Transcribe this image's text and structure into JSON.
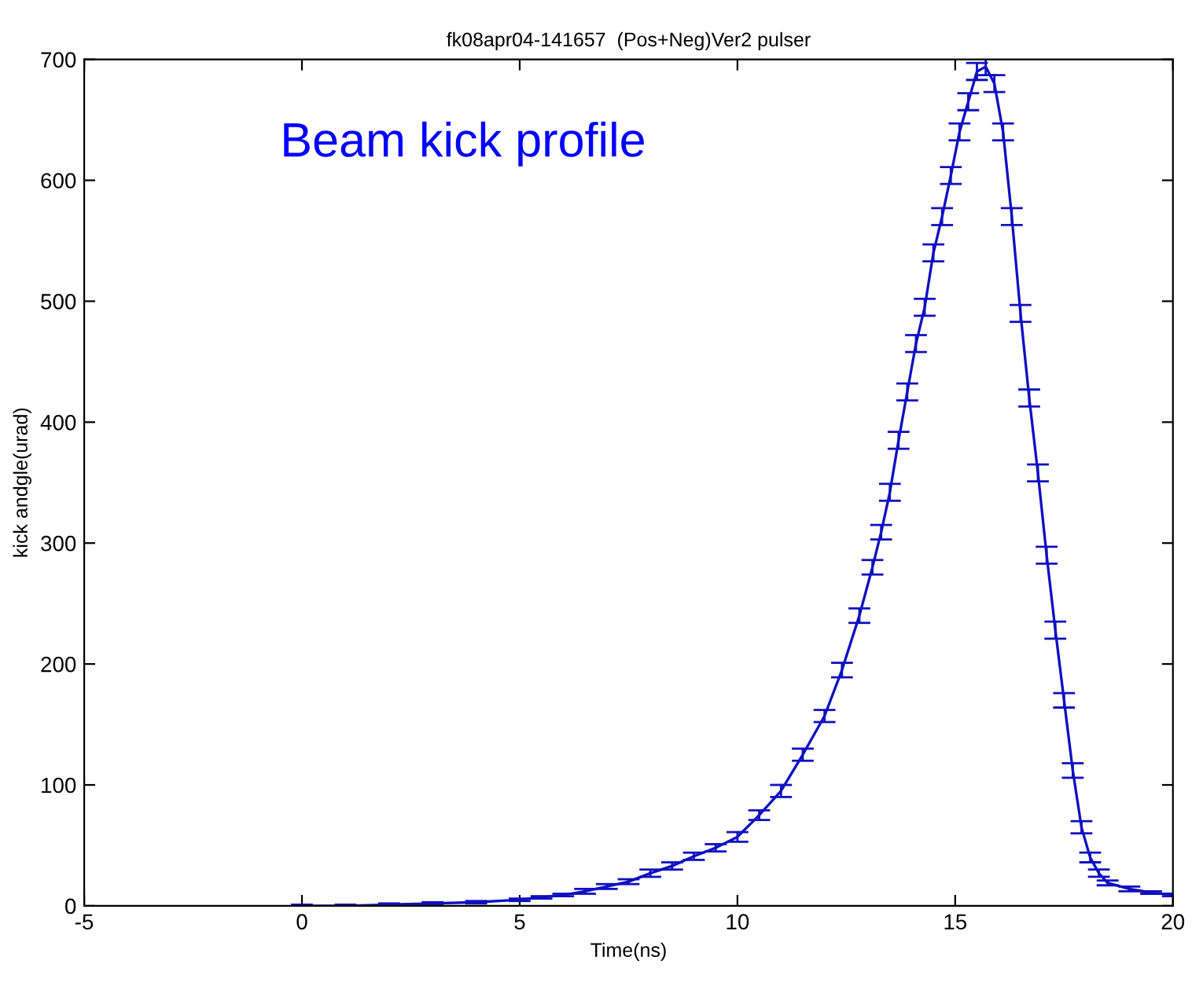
{
  "chart_data": {
    "type": "line",
    "title": "fk08apr04-141657  (Pos+Neg)Ver2 pulser",
    "xlabel": "Time(ns)",
    "ylabel": "kick andgle(urad)",
    "annotations": [
      "Beam kick profile"
    ],
    "xlim": [
      -5,
      20
    ],
    "xticks": [
      -5,
      0,
      5,
      10,
      15,
      20
    ],
    "ylim": [
      0,
      700
    ],
    "yticks": [
      0,
      100,
      200,
      300,
      400,
      500,
      600,
      700
    ],
    "grid": false,
    "series": [
      {
        "color": "#1010c0",
        "x": [
          0,
          1,
          2,
          3,
          4,
          5,
          5.5,
          6,
          6.5,
          7,
          7.5,
          8,
          8.5,
          9,
          9.5,
          10,
          10.5,
          11,
          11.5,
          12,
          12.4,
          12.8,
          13.1,
          13.3,
          13.5,
          13.7,
          13.9,
          14.1,
          14.3,
          14.5,
          14.7,
          14.9,
          15.1,
          15.3,
          15.5,
          15.7,
          15.9,
          16.1,
          16.3,
          16.5,
          16.7,
          16.9,
          17.1,
          17.3,
          17.5,
          17.7,
          17.9,
          18.1,
          18.3,
          18.5,
          19,
          19.5,
          20
        ],
        "values": [
          0,
          0,
          1,
          2,
          3,
          5,
          7,
          9,
          12,
          16,
          20,
          27,
          33,
          41,
          48,
          57,
          75,
          95,
          125,
          157,
          195,
          240,
          280,
          309,
          342,
          385,
          425,
          465,
          495,
          540,
          570,
          604,
          640,
          665,
          690,
          694,
          680,
          640,
          570,
          490,
          420,
          358,
          290,
          228,
          170,
          112,
          65,
          40,
          27,
          19,
          14,
          11,
          9
        ],
        "errors": [
          1,
          1,
          1,
          1,
          1,
          1,
          1,
          1,
          2,
          2,
          2,
          3,
          3,
          3,
          3,
          4,
          4,
          5,
          5,
          5,
          6,
          6,
          6,
          6,
          7,
          7,
          7,
          7,
          7,
          7,
          7,
          7,
          7,
          7,
          7,
          7,
          7,
          7,
          7,
          7,
          7,
          7,
          7,
          7,
          6,
          6,
          5,
          4,
          3,
          2,
          2,
          1,
          1
        ]
      }
    ]
  }
}
